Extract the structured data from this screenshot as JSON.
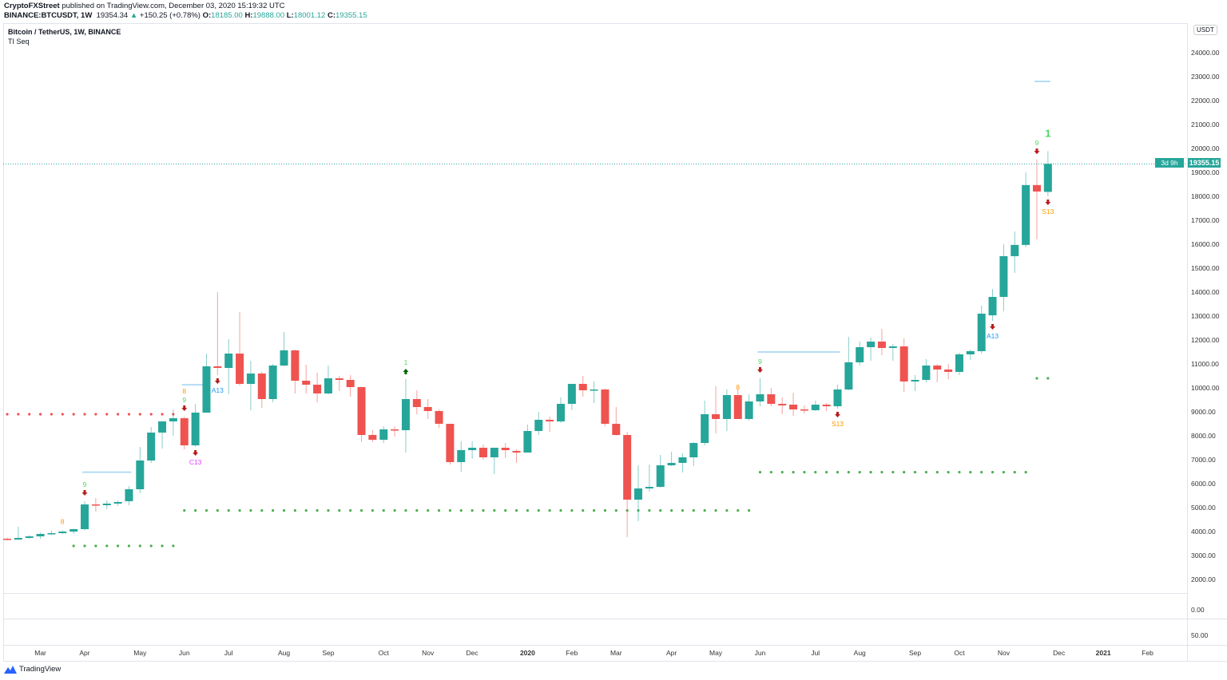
{
  "header": {
    "publisher": "CryptoFXStreet",
    "published_text": "published on TradingView.com, December 03, 2020 15:19:32 UTC",
    "symbol": "BINANCE:BTCUSDT, 1W",
    "last": "19354.34",
    "change": "+150.25 (+0.78%)",
    "o_label": "O:",
    "o": "18185.00",
    "h_label": "H:",
    "h": "19888.00",
    "l_label": "L:",
    "l": "18001.12",
    "c_label": "C:",
    "c": "19355.15"
  },
  "legend": {
    "title": "Bitcoin / TetherUS, 1W, BINANCE",
    "indicator": "TI Seq"
  },
  "price_axis": {
    "currency": "USDT",
    "last_price": "19355.15",
    "countdown": "3d 9h"
  },
  "lower_panes": [
    {
      "value": "0.00"
    },
    {
      "value": "50.00"
    }
  ],
  "footer": {
    "brand": "TradingView"
  },
  "colors": {
    "up": "#26a69a",
    "down": "#ef5350",
    "support": "#4caf50",
    "resistance": "#ef5350",
    "level": "#b3dcf5"
  },
  "chart_data": {
    "type": "candlestick",
    "title": "Bitcoin / TetherUS, 1W, BINANCE",
    "interval": "1W",
    "ylim": [
      1500,
      25000
    ],
    "yticks": [
      2000,
      3000,
      4000,
      5000,
      6000,
      7000,
      8000,
      9000,
      10000,
      11000,
      12000,
      13000,
      14000,
      15000,
      16000,
      17000,
      18000,
      19000,
      20000,
      21000,
      22000,
      23000,
      24000
    ],
    "xticks": [
      {
        "label": "Mar",
        "bar": 3
      },
      {
        "label": "Apr",
        "bar": 7
      },
      {
        "label": "May",
        "bar": 12
      },
      {
        "label": "Jun",
        "bar": 16
      },
      {
        "label": "Jul",
        "bar": 20
      },
      {
        "label": "Aug",
        "bar": 25
      },
      {
        "label": "Sep",
        "bar": 29
      },
      {
        "label": "Oct",
        "bar": 34
      },
      {
        "label": "Nov",
        "bar": 38
      },
      {
        "label": "Dec",
        "bar": 42
      },
      {
        "label": "2020",
        "bar": 47,
        "bold": true
      },
      {
        "label": "Feb",
        "bar": 51
      },
      {
        "label": "Mar",
        "bar": 55
      },
      {
        "label": "Apr",
        "bar": 60
      },
      {
        "label": "May",
        "bar": 64
      },
      {
        "label": "Jun",
        "bar": 68
      },
      {
        "label": "Jul",
        "bar": 73
      },
      {
        "label": "Aug",
        "bar": 77
      },
      {
        "label": "Sep",
        "bar": 82
      },
      {
        "label": "Oct",
        "bar": 86
      },
      {
        "label": "Nov",
        "bar": 90
      },
      {
        "label": "Dec",
        "bar": 95
      },
      {
        "label": "2021",
        "bar": 99,
        "bold": true
      },
      {
        "label": "Feb",
        "bar": 103
      }
    ],
    "ohlc": [
      [
        3700,
        3750,
        3630,
        3667
      ],
      [
        3667,
        4200,
        3640,
        3733
      ],
      [
        3733,
        3850,
        3700,
        3800
      ],
      [
        3800,
        3950,
        3700,
        3900
      ],
      [
        3900,
        4050,
        3850,
        3933
      ],
      [
        3933,
        4050,
        3900,
        4000
      ],
      [
        4000,
        4120,
        3900,
        4100
      ],
      [
        4100,
        5267,
        4050,
        5133
      ],
      [
        5133,
        5400,
        4833,
        5100
      ],
      [
        5100,
        5300,
        4933,
        5167
      ],
      [
        5167,
        5300,
        5067,
        5233
      ],
      [
        5267,
        5900,
        5100,
        5767
      ],
      [
        5767,
        7533,
        5600,
        6967
      ],
      [
        6967,
        8367,
        6867,
        8133
      ],
      [
        8133,
        8600,
        7467,
        8600
      ],
      [
        8600,
        9100,
        8000,
        8733
      ],
      [
        8733,
        8800,
        7433,
        7600
      ],
      [
        7600,
        9333,
        7533,
        8967
      ],
      [
        8967,
        11433,
        8967,
        10900
      ],
      [
        10900,
        14000,
        10533,
        10833
      ],
      [
        10833,
        12033,
        9733,
        11433
      ],
      [
        11433,
        13167,
        10100,
        10167
      ],
      [
        10167,
        11133,
        9067,
        10600
      ],
      [
        10600,
        10667,
        9167,
        9533
      ],
      [
        9533,
        11000,
        9400,
        10933
      ],
      [
        10933,
        12333,
        10900,
        11567
      ],
      [
        11567,
        11600,
        9767,
        10300
      ],
      [
        10300,
        10967,
        9767,
        10133
      ],
      [
        10133,
        10633,
        9400,
        9767
      ],
      [
        9767,
        10933,
        9733,
        10400
      ],
      [
        10400,
        10500,
        9867,
        10333
      ],
      [
        10333,
        10533,
        9633,
        10033
      ],
      [
        10033,
        10033,
        7733,
        8033
      ],
      [
        8033,
        8233,
        7733,
        7833
      ],
      [
        7833,
        8400,
        7700,
        8267
      ],
      [
        8267,
        8400,
        7967,
        8233
      ],
      [
        8233,
        10367,
        7300,
        9533
      ],
      [
        9533,
        9900,
        8900,
        9200
      ],
      [
        9200,
        9533,
        8700,
        9033
      ],
      [
        9033,
        9100,
        8333,
        8500
      ],
      [
        8500,
        8500,
        6800,
        6900
      ],
      [
        6900,
        7767,
        6500,
        7400
      ],
      [
        7400,
        7767,
        7033,
        7500
      ],
      [
        7500,
        7633,
        7000,
        7100
      ],
      [
        7100,
        7500,
        6400,
        7500
      ],
      [
        7500,
        7700,
        7067,
        7400
      ],
      [
        7367,
        7433,
        6867,
        7300
      ],
      [
        7300,
        8467,
        7300,
        8200
      ],
      [
        8200,
        9000,
        8033,
        8667
      ],
      [
        8667,
        8800,
        8167,
        8600
      ],
      [
        8600,
        9600,
        8533,
        9333
      ],
      [
        9333,
        10167,
        9067,
        10167
      ],
      [
        10167,
        10500,
        9633,
        9900
      ],
      [
        9900,
        10267,
        9367,
        9933
      ],
      [
        9933,
        9967,
        8400,
        8500
      ],
      [
        8500,
        9200,
        8000,
        8033
      ],
      [
        8033,
        8167,
        3767,
        5333
      ],
      [
        5333,
        6767,
        4433,
        5800
      ],
      [
        5800,
        6800,
        5667,
        5867
      ],
      [
        5867,
        7200,
        5833,
        6767
      ],
      [
        6767,
        7333,
        6733,
        6867
      ],
      [
        6867,
        7267,
        6467,
        7100
      ],
      [
        7100,
        7733,
        6733,
        7700
      ],
      [
        7700,
        9467,
        7600,
        8900
      ],
      [
        8900,
        10067,
        8100,
        8700
      ],
      [
        8700,
        9933,
        8200,
        9700
      ],
      [
        9700,
        9967,
        8700,
        8700
      ],
      [
        8700,
        9733,
        8633,
        9433
      ],
      [
        9433,
        10400,
        9233,
        9733
      ],
      [
        9733,
        10000,
        9233,
        9333
      ],
      [
        9333,
        9600,
        8900,
        9267
      ],
      [
        9300,
        9800,
        8833,
        9100
      ],
      [
        9100,
        9267,
        8933,
        9067
      ],
      [
        9067,
        9467,
        9033,
        9300
      ],
      [
        9300,
        9367,
        9033,
        9233
      ],
      [
        9233,
        10133,
        9133,
        9933
      ],
      [
        9933,
        12133,
        9900,
        11067
      ],
      [
        11067,
        11933,
        10933,
        11700
      ],
      [
        11700,
        12100,
        11133,
        11933
      ],
      [
        11933,
        12467,
        11367,
        11667
      ],
      [
        11667,
        11833,
        11133,
        11733
      ],
      [
        11733,
        12067,
        9833,
        10267
      ],
      [
        10267,
        10533,
        9867,
        10333
      ],
      [
        10333,
        11200,
        10233,
        10933
      ],
      [
        10933,
        11000,
        10233,
        10767
      ],
      [
        10767,
        11000,
        10367,
        10667
      ],
      [
        10667,
        11467,
        10533,
        11400
      ],
      [
        11400,
        11600,
        11167,
        11533
      ],
      [
        11533,
        13433,
        11433,
        13100
      ],
      [
        13030,
        14130,
        12800,
        13800
      ],
      [
        13800,
        16000,
        13200,
        15500
      ],
      [
        15500,
        16530,
        14800,
        15970
      ],
      [
        15970,
        19000,
        15870,
        18470
      ],
      [
        18470,
        19530,
        16200,
        18200
      ],
      [
        18185,
        19888,
        18001,
        19355
      ]
    ],
    "last_price": 19355.15,
    "td_labels": [
      {
        "bar": 7,
        "text": "9",
        "pos": "above",
        "color": "#4cd964"
      },
      {
        "bar": 16,
        "text": "9",
        "pos": "above",
        "color": "#4cd964"
      },
      {
        "bar": 36,
        "text": "1",
        "pos": "above",
        "color": "#4cd964"
      },
      {
        "bar": 68,
        "text": "9",
        "pos": "above",
        "color": "#4cd964"
      },
      {
        "bar": 93,
        "text": "9",
        "pos": "above",
        "color": "#4cd964"
      },
      {
        "bar": 94,
        "text": "1",
        "pos": "above",
        "color": "#4cd964",
        "large": true
      },
      {
        "bar": 17,
        "text": "C13",
        "pos": "below",
        "color": "#e040fb"
      },
      {
        "bar": 19,
        "text": "A13",
        "pos": "below",
        "color": "#2196f3"
      },
      {
        "bar": 75,
        "text": "S13",
        "pos": "below",
        "color": "#ff9800"
      },
      {
        "bar": 89,
        "text": "A13",
        "pos": "below",
        "color": "#2196f3"
      },
      {
        "bar": 94,
        "text": "S13",
        "pos": "below",
        "color": "#ff9800"
      },
      {
        "bar": 6,
        "text": "8",
        "pos": "side",
        "color": "#ff9800"
      },
      {
        "bar": 16,
        "text": "8",
        "pos": "top",
        "color": "#ff9800"
      },
      {
        "bar": 67,
        "text": "8",
        "pos": "side",
        "color": "#ff9800"
      }
    ],
    "arrows": [
      {
        "bar": 7,
        "dir": "down",
        "pos": "above"
      },
      {
        "bar": 16,
        "dir": "down",
        "pos": "above"
      },
      {
        "bar": 68,
        "dir": "down",
        "pos": "above"
      },
      {
        "bar": 93,
        "dir": "down",
        "pos": "above"
      },
      {
        "bar": 36,
        "dir": "up",
        "pos": "above"
      },
      {
        "bar": 17,
        "dir": "down",
        "pos": "below"
      },
      {
        "bar": 19,
        "dir": "down",
        "pos": "below"
      },
      {
        "bar": 75,
        "dir": "down",
        "pos": "below"
      },
      {
        "bar": 89,
        "dir": "down",
        "pos": "below"
      },
      {
        "bar": 94,
        "dir": "down",
        "pos": "below"
      }
    ],
    "levels": [
      {
        "from": 7,
        "to": 11,
        "price": 6480
      },
      {
        "from": 16,
        "to": 18,
        "price": 10130
      },
      {
        "from": 68,
        "to": 75,
        "price": 11500
      },
      {
        "from": 93,
        "to": 94,
        "price": 22800
      }
    ],
    "dots": [
      {
        "from": 0,
        "to": 15,
        "price": 8900,
        "type": "resistance"
      },
      {
        "from": 6,
        "to": 15,
        "price": 3400,
        "type": "support"
      },
      {
        "from": 16,
        "to": 67,
        "price": 4880,
        "type": "support"
      },
      {
        "from": 68,
        "to": 92,
        "price": 6480,
        "type": "support"
      },
      {
        "from": 93,
        "to": 94,
        "price": 10400,
        "type": "support"
      }
    ]
  }
}
